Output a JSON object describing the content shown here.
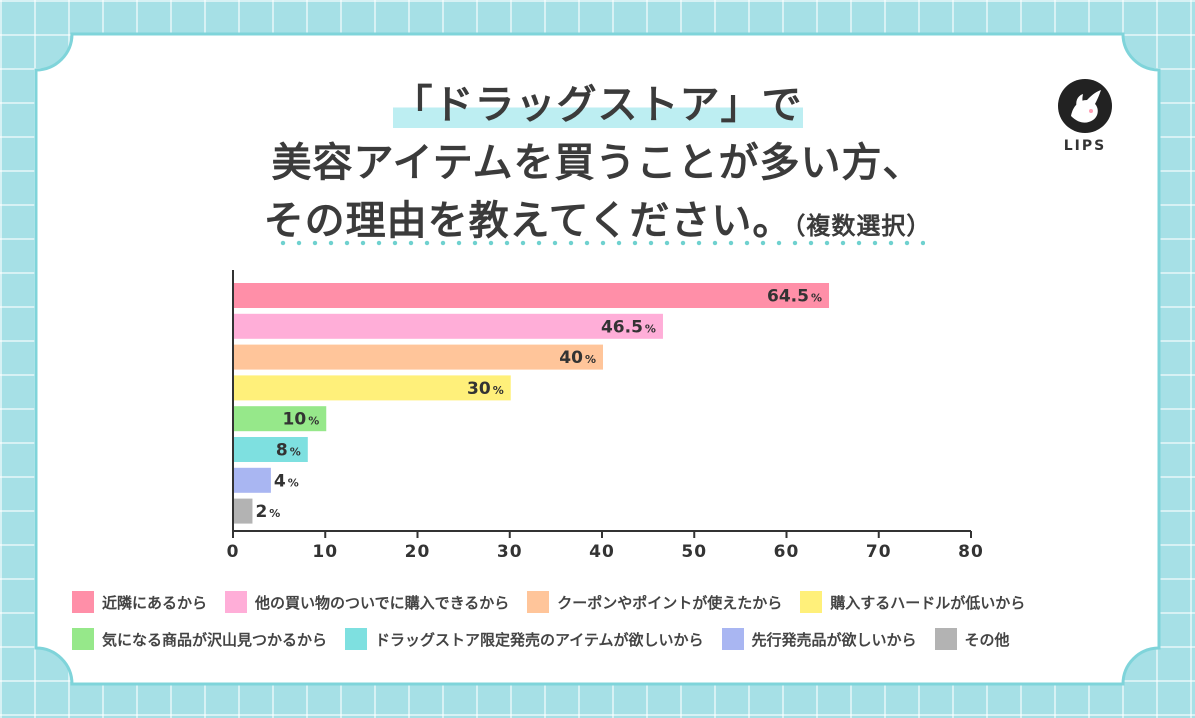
{
  "title": {
    "line1": "「ドラッグストア」で",
    "line2": "美容アイテムを買うことが多い方、",
    "line3": "その理由を教えてください。",
    "note": "（複数選択）"
  },
  "logo": {
    "text": "LIPS",
    "icon": "fawn-logo-icon"
  },
  "chart_data": {
    "type": "bar",
    "orientation": "horizontal",
    "categories": [
      "近隣にあるから",
      "他の買い物のついでに購入できるから",
      "クーポンやポイントが使えたから",
      "購入するハードルが低いから",
      "気になる商品が沢山見つかるから",
      "ドラッグストア限定発売のアイテムが欲しいから",
      "先行発売品が欲しいから",
      "その他"
    ],
    "values": [
      64.5,
      46.5,
      40,
      30,
      10,
      8,
      4,
      2
    ],
    "value_labels": [
      "64.5",
      "46.5",
      "40",
      "30",
      "10",
      "8",
      "4",
      "2"
    ],
    "unit": "%",
    "colors": [
      "#ff8fa8",
      "#ffaed8",
      "#ffc59a",
      "#fff07a",
      "#96e88a",
      "#7ee0e0",
      "#a9b6f2",
      "#b3b3b3"
    ],
    "xlim": [
      0,
      80
    ],
    "xticks": [
      "0",
      "10",
      "20",
      "30",
      "40",
      "50",
      "60",
      "70",
      "80"
    ],
    "grid": false,
    "legend": "bottom"
  }
}
